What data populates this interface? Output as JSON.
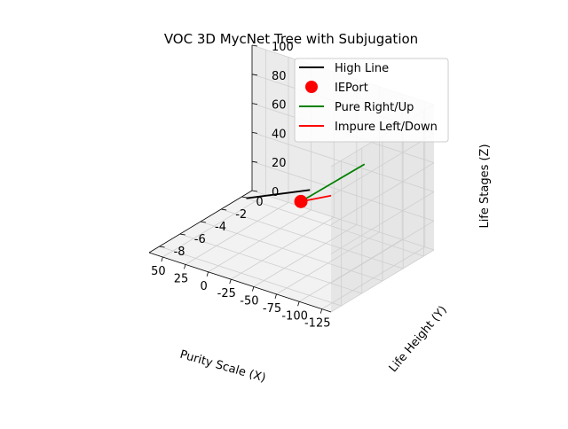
{
  "chart_data": {
    "type": "line3d",
    "title": "VOC 3D MycNet Tree with Subjugation",
    "xlabel": "Purity Scale (X)",
    "ylabel": "Life Height (Y)",
    "zlabel": "Life Stages (Z)",
    "xlim": [
      -135,
      65
    ],
    "ylim": [
      -9,
      1
    ],
    "zlim": [
      0,
      100
    ],
    "xticks": [
      -125,
      -100,
      -75,
      -50,
      -25,
      0,
      25,
      50
    ],
    "yticks": [
      -8,
      -6,
      -4,
      -2,
      0
    ],
    "zticks": [
      0,
      20,
      40,
      60,
      80,
      100
    ],
    "grid": true,
    "legend_position": "top-right",
    "series": [
      {
        "name": "High Line",
        "kind": "line",
        "color": "#000000",
        "points": [
          [
            -10,
            0,
            20
          ],
          [
            60,
            0,
            0
          ]
        ]
      },
      {
        "name": "IEPort",
        "kind": "point",
        "color": "#ff0000",
        "points": [
          [
            0,
            0,
            10
          ]
        ]
      },
      {
        "name": "Pure Right/Up",
        "kind": "line",
        "color": "#008000",
        "points": [
          [
            0,
            0,
            10
          ],
          [
            -70,
            0,
            50
          ]
        ]
      },
      {
        "name": "Impure Left/Down",
        "kind": "line",
        "color": "#ff0000",
        "points": [
          [
            0,
            0,
            10
          ],
          [
            -135,
            -9,
            80
          ]
        ]
      }
    ]
  }
}
